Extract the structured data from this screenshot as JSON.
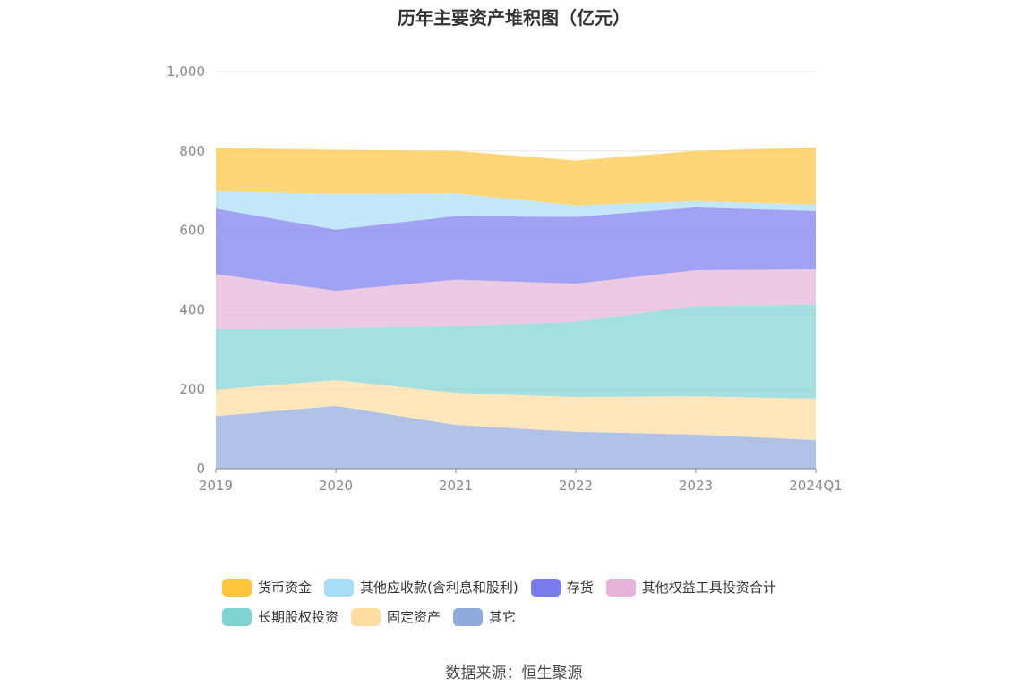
{
  "chart_data": {
    "type": "area",
    "stacked": true,
    "title": "历年主要资产堆积图（亿元）",
    "categories": [
      "2019",
      "2020",
      "2021",
      "2022",
      "2023",
      "2024Q1"
    ],
    "ylim": [
      0,
      1000
    ],
    "yticks": [
      "0",
      "200",
      "400",
      "600",
      "800",
      "1,000"
    ],
    "grid": true,
    "legend_position": "bottom",
    "series": [
      {
        "name": "其它",
        "color": "#8FAADC",
        "values": [
          132,
          158,
          110,
          93,
          86,
          72
        ]
      },
      {
        "name": "固定资产",
        "color": "#FFDCA0",
        "values": [
          67,
          65,
          81,
          87,
          96,
          104
        ]
      },
      {
        "name": "长期股权投资",
        "color": "#7FD3D3",
        "values": [
          152,
          130,
          168,
          190,
          228,
          237
        ]
      },
      {
        "name": "其他权益工具投资合计",
        "color": "#E6B3D9",
        "values": [
          139,
          95,
          117,
          96,
          90,
          89
        ]
      },
      {
        "name": "存货",
        "color": "#7B7BF0",
        "values": [
          165,
          154,
          160,
          168,
          158,
          147
        ]
      },
      {
        "name": "其他应收款(含利息和股利)",
        "color": "#A8DDF8",
        "values": [
          43,
          90,
          57,
          29,
          16,
          16
        ]
      },
      {
        "name": "货币资金",
        "color": "#FFC53D",
        "values": [
          110,
          111,
          107,
          113,
          126,
          144
        ]
      }
    ]
  },
  "legend": [
    {
      "name": "货币资金",
      "color": "#FFC53D"
    },
    {
      "name": "其他应收款(含利息和股利)",
      "color": "#A8DDF8"
    },
    {
      "name": "存货",
      "color": "#7B7BF0"
    },
    {
      "name": "其他权益工具投资合计",
      "color": "#E6B3D9"
    },
    {
      "name": "长期股权投资",
      "color": "#7FD3D3"
    },
    {
      "name": "固定资产",
      "color": "#FFDCA0"
    },
    {
      "name": "其它",
      "color": "#8FAADC"
    }
  ],
  "source": "数据来源：恒生聚源"
}
